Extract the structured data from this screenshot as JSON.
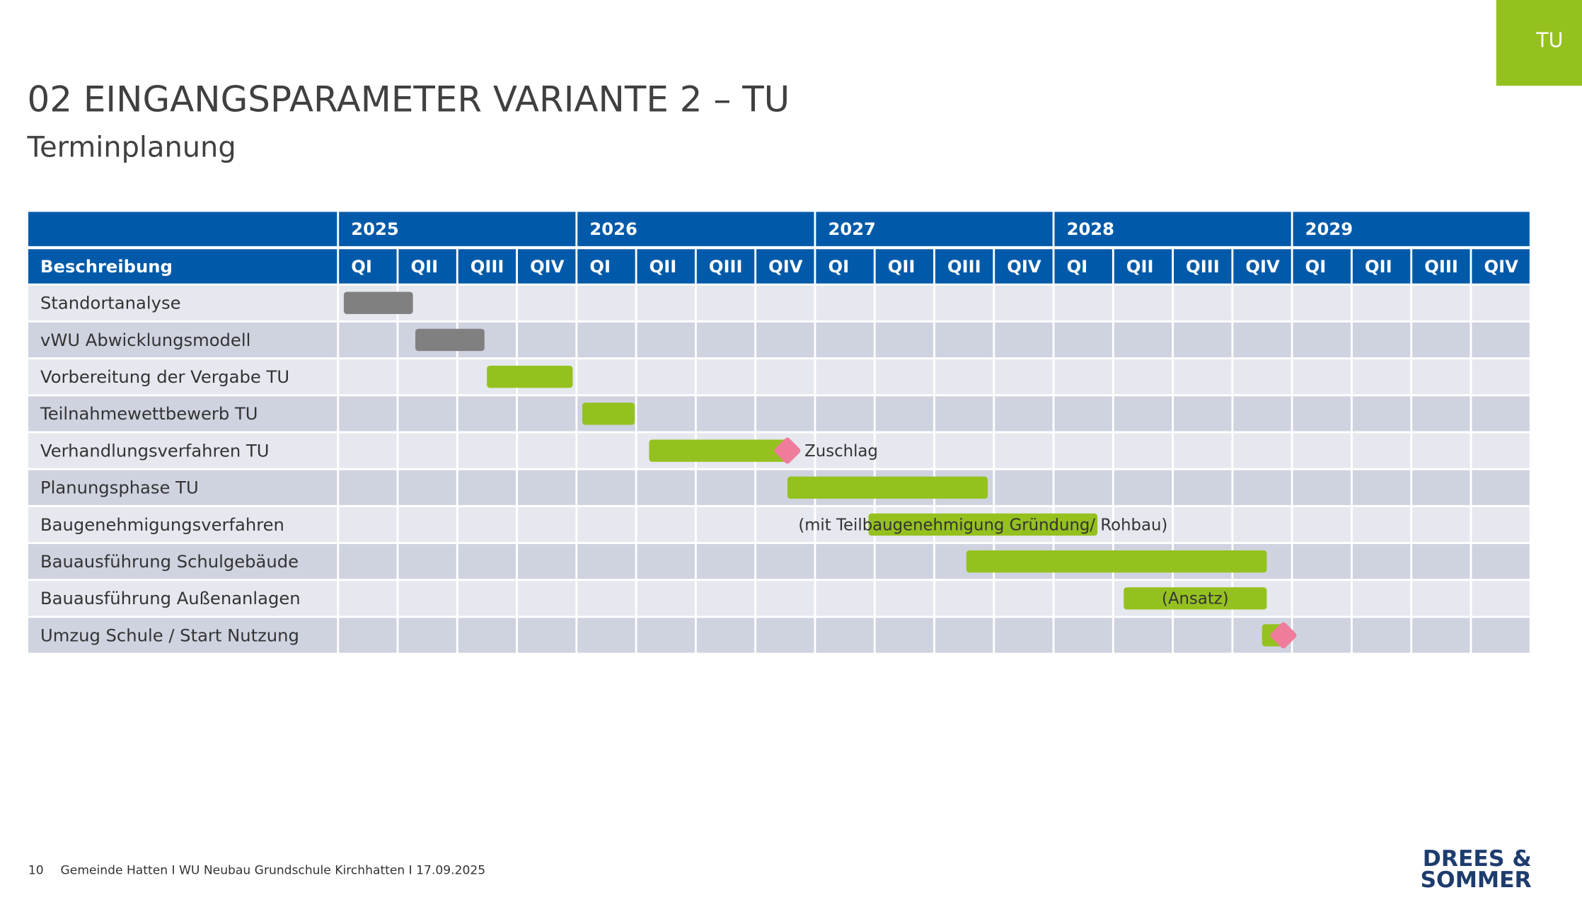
{
  "badge": "TU",
  "title": "02 EINGANGSPARAMETER VARIANTE 2 – TU",
  "subtitle": "Terminplanung",
  "chart_data": {
    "type": "gantt",
    "header": "Beschreibung",
    "xlim": [
      2025,
      2030
    ],
    "xticks": [
      2025,
      2026,
      2027,
      2028,
      2029
    ],
    "quarters": [
      "QI",
      "QII",
      "QIII",
      "QIV"
    ],
    "tasks": [
      {
        "name": "Standortanalyse",
        "start": 2025.02,
        "end": 2025.31,
        "color": "#808080"
      },
      {
        "name": "vWU Abwicklungsmodell",
        "start": 2025.32,
        "end": 2025.61,
        "color": "#808080"
      },
      {
        "name": "Vorbereitung der Vergabe TU",
        "start": 2025.62,
        "end": 2025.98,
        "color": "#95c11f"
      },
      {
        "name": "Teilnahmewettbewerb TU",
        "start": 2026.02,
        "end": 2026.24,
        "color": "#95c11f"
      },
      {
        "name": "Verhandlungsverfahren TU",
        "start": 2026.3,
        "end": 2026.88,
        "color": "#95c11f",
        "milestone": 2026.88,
        "note": "Zuschlag"
      },
      {
        "name": "Planungsphase TU",
        "start": 2026.88,
        "end": 2027.72,
        "color": "#95c11f"
      },
      {
        "name": "Baugenehmigungsverfahren",
        "start": 2027.22,
        "end": 2028.18,
        "color": "#95c11f",
        "note": "(mit Teilbaugenehmigung Gründung/ Rohbau)"
      },
      {
        "name": "Bauausführung Schulgebäude",
        "start": 2027.63,
        "end": 2028.89,
        "color": "#95c11f"
      },
      {
        "name": "Bauausführung Außenanlagen",
        "start": 2028.29,
        "end": 2028.89,
        "color": "#95c11f",
        "note": "(Ansatz)"
      },
      {
        "name": "Umzug Schule / Start Nutzung",
        "start": 2028.87,
        "end": 2028.96,
        "color": "#95c11f",
        "milestone": 2028.96
      }
    ],
    "milestone_color": "#f07c9b"
  },
  "footer": {
    "page": "10",
    "text": "Gemeinde Hatten I WU Neubau Grundschule Kirchhatten I 17.09.2025",
    "logo": [
      "DREES &",
      "SOMMER"
    ]
  }
}
